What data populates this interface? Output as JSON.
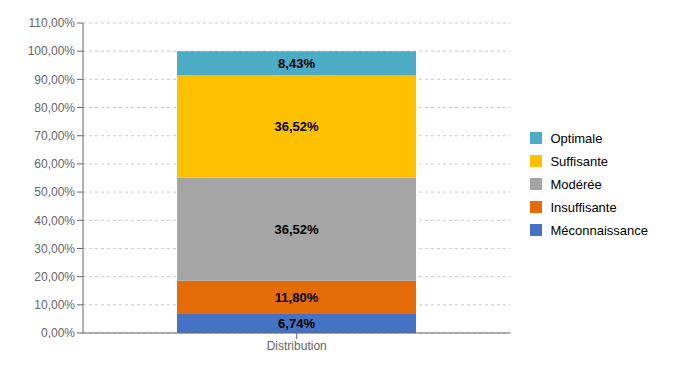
{
  "chart_data": {
    "type": "bar",
    "stacked": true,
    "data_labels": true,
    "grid": true,
    "legend": "right",
    "categories": [
      "Distribution"
    ],
    "series": [
      {
        "name": "Méconnaissance",
        "color": "#4472C4",
        "values": [
          6.74
        ],
        "value_labels": [
          "6,74%"
        ]
      },
      {
        "name": "Insuffisante",
        "color": "#E36C09",
        "values": [
          11.8
        ],
        "value_labels": [
          "11,80%"
        ]
      },
      {
        "name": "Modérée",
        "color": "#A5A5A5",
        "values": [
          36.52
        ],
        "value_labels": [
          "36,52%"
        ]
      },
      {
        "name": "Suffisante",
        "color": "#FFC000",
        "values": [
          36.52
        ],
        "value_labels": [
          "36,52%"
        ]
      },
      {
        "name": "Optimale",
        "color": "#4BACC6",
        "values": [
          8.43
        ],
        "value_labels": [
          "8,43%"
        ]
      }
    ],
    "ylim": [
      0,
      110
    ],
    "yticks": [
      {
        "value": 0,
        "label": "0,00%"
      },
      {
        "value": 10,
        "label": "10,00%"
      },
      {
        "value": 20,
        "label": "20,00%"
      },
      {
        "value": 30,
        "label": "30,00%"
      },
      {
        "value": 40,
        "label": "40,00%"
      },
      {
        "value": 50,
        "label": "50,00%"
      },
      {
        "value": 60,
        "label": "60,00%"
      },
      {
        "value": 70,
        "label": "70,00%"
      },
      {
        "value": 80,
        "label": "80,00%"
      },
      {
        "value": 90,
        "label": "90,00%"
      },
      {
        "value": 100,
        "label": "100,00%"
      },
      {
        "value": 110,
        "label": "110,00%"
      }
    ]
  }
}
